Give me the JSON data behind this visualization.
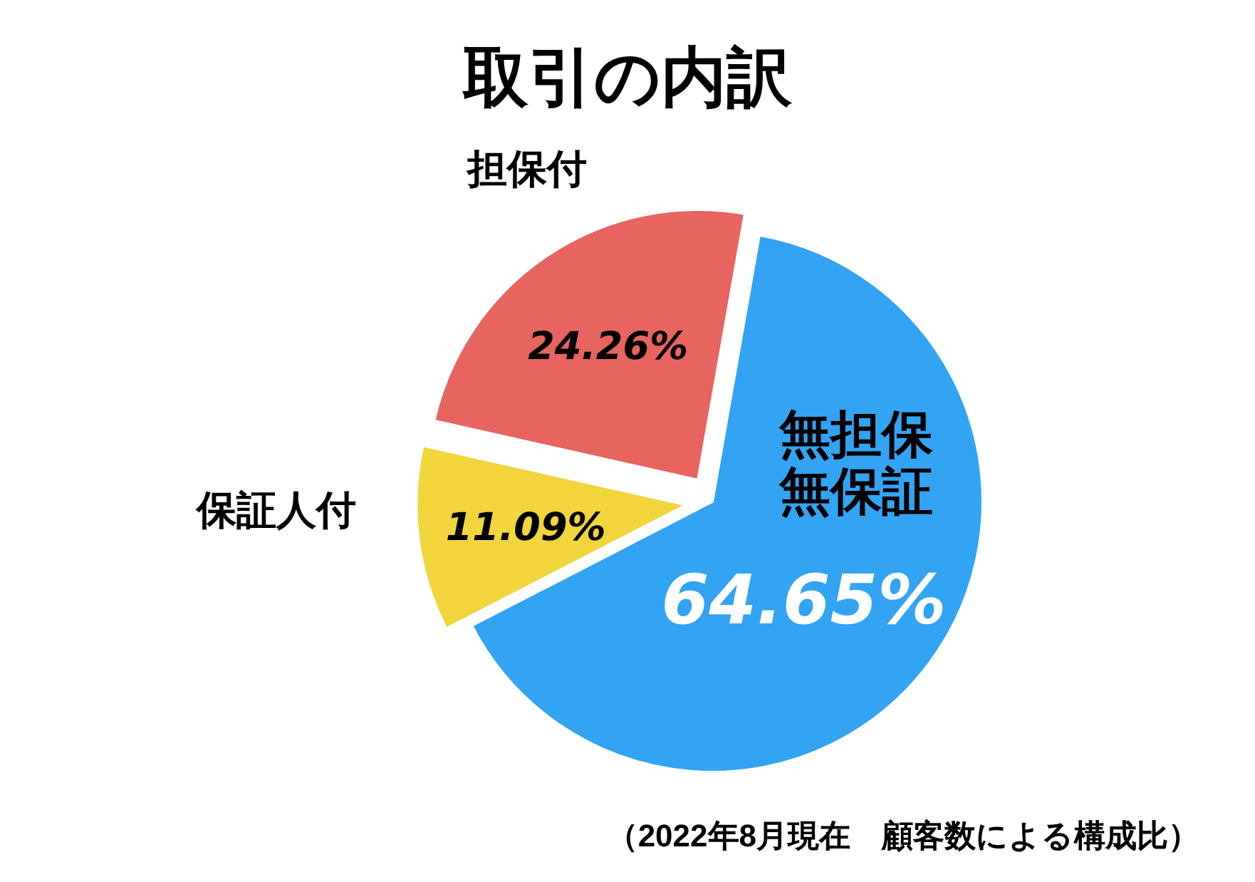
{
  "chart_data": {
    "type": "pie",
    "title": "取引の内訳",
    "categories": [
      "無担保無保証",
      "保証人付",
      "担保付"
    ],
    "values": [
      64.65,
      11.09,
      24.26
    ],
    "colors": [
      "#33a3f4",
      "#f2d43c",
      "#e8645e"
    ],
    "value_labels": [
      "64.65%",
      "11.09%",
      "24.26%"
    ],
    "annotations": [
      "（2022年8月現在　顧客数による構成比）"
    ]
  }
}
